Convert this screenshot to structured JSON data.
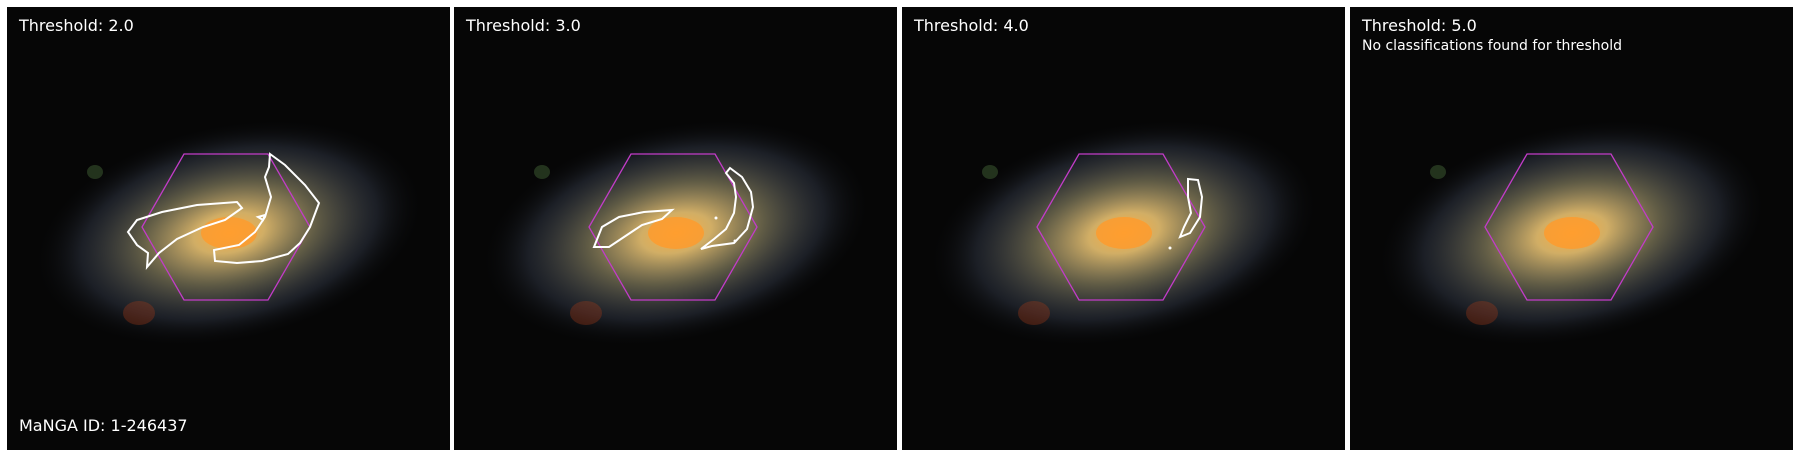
{
  "panels": [
    {
      "threshold_label": "Threshold: 2.0",
      "note": "",
      "id_label": "MaNGA ID: 1-246437",
      "contours": "t2"
    },
    {
      "threshold_label": "Threshold: 3.0",
      "note": "",
      "id_label": "",
      "contours": "t3"
    },
    {
      "threshold_label": "Threshold: 4.0",
      "note": "",
      "id_label": "",
      "contours": "t4"
    },
    {
      "threshold_label": "Threshold: 5.0",
      "note": "No classifications found for threshold",
      "id_label": "",
      "contours": "none"
    }
  ],
  "colors": {
    "background": "#ffffff",
    "hexagon": "#c23cc8",
    "contour": "#ffffff",
    "galaxy_core": "#ff9a2a",
    "galaxy_halo": "#9aa6c8"
  }
}
